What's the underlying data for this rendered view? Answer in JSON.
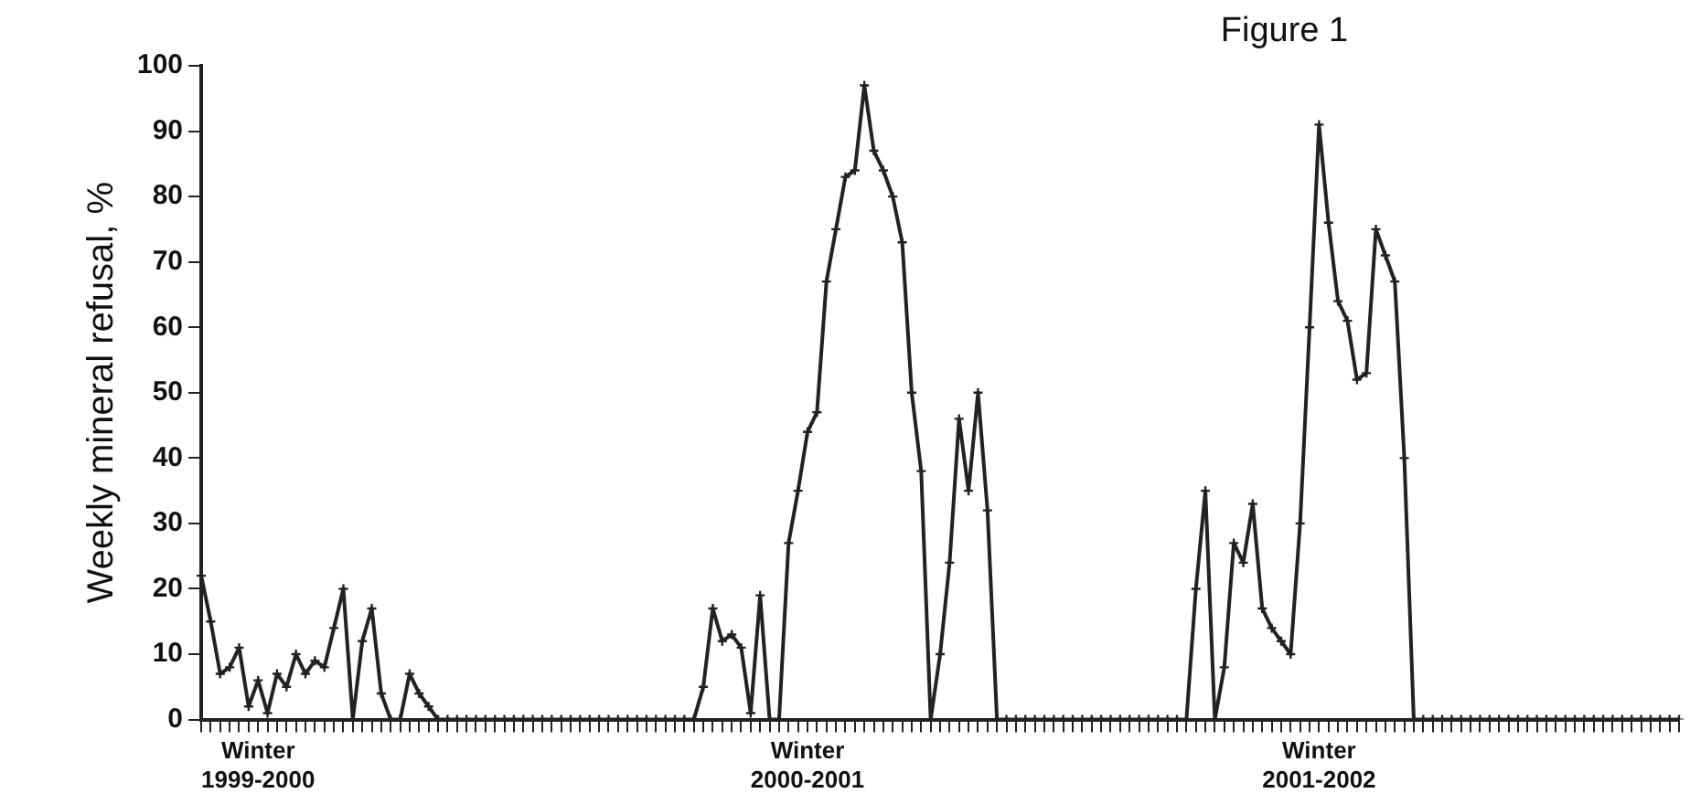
{
  "chart_data": {
    "type": "line",
    "title": "Figure 1",
    "ylabel": "Weekly mineral refusal, %",
    "categories": [
      null,
      null,
      null,
      null,
      null,
      null,
      "Winter 1999-2000",
      null,
      null,
      null,
      null,
      null,
      null,
      null,
      null,
      null,
      null,
      null,
      null,
      null,
      null,
      null,
      null,
      null,
      null,
      null,
      null,
      null,
      null,
      null,
      null,
      null,
      null,
      null,
      null,
      null,
      null,
      null,
      null,
      null,
      null,
      null,
      null,
      null,
      null,
      null,
      null,
      null,
      null,
      null,
      null,
      null,
      null,
      null,
      null,
      null,
      null,
      null,
      null,
      null,
      null,
      null,
      null,
      null,
      "Winter 2000-2001",
      null,
      null,
      null,
      null,
      null,
      null,
      null,
      null,
      null,
      null,
      null,
      null,
      null,
      null,
      null,
      null,
      null,
      null,
      null,
      null,
      null,
      null,
      null,
      null,
      null,
      null,
      null,
      null,
      null,
      null,
      null,
      null,
      null,
      null,
      null,
      null,
      null,
      null,
      null,
      null,
      null,
      null,
      null,
      null,
      null,
      null,
      null,
      null,
      null,
      null,
      null,
      null,
      null,
      "Winter 2001-2002",
      null,
      null,
      null,
      null,
      null,
      null,
      null,
      null,
      null,
      null,
      null,
      null,
      null,
      null,
      null,
      null,
      null,
      null,
      null,
      null,
      null,
      null,
      null,
      null,
      null,
      null,
      null,
      null,
      null,
      null,
      null,
      null,
      null,
      null,
      null,
      null,
      null,
      null
    ],
    "series": [
      {
        "color": "#222222",
        "values": [
          22,
          15,
          7,
          8,
          11,
          2,
          6,
          1,
          7,
          5,
          10,
          7,
          9,
          8,
          14,
          20,
          0,
          12,
          17,
          4,
          0,
          0,
          7,
          4,
          2,
          0,
          0,
          0,
          0,
          0,
          0,
          0,
          0,
          0,
          0,
          0,
          0,
          0,
          0,
          0,
          0,
          0,
          0,
          0,
          0,
          0,
          0,
          0,
          0,
          0,
          0,
          0,
          0,
          5,
          17,
          12,
          13,
          11,
          1,
          19,
          0,
          0,
          27,
          35,
          44,
          47,
          67,
          75,
          83,
          84,
          97,
          87,
          84,
          80,
          73,
          50,
          38,
          0,
          10,
          24,
          46,
          35,
          50,
          32,
          0,
          0,
          0,
          0,
          0,
          0,
          0,
          0,
          0,
          0,
          0,
          0,
          0,
          0,
          0,
          0,
          0,
          0,
          0,
          0,
          0,
          20,
          35,
          0,
          8,
          27,
          24,
          33,
          17,
          14,
          12,
          10,
          30,
          60,
          91,
          76,
          64,
          61,
          52,
          53,
          75,
          71,
          67,
          40,
          0,
          0,
          0,
          0,
          0,
          0,
          0,
          0,
          0,
          0,
          0,
          0,
          0,
          0,
          0,
          0,
          0,
          0,
          0,
          0,
          0,
          0,
          0,
          0,
          0,
          0,
          0,
          0,
          0
        ]
      }
    ],
    "ylim": [
      0,
      100
    ],
    "yticks": [
      0,
      10,
      20,
      30,
      40,
      50,
      60,
      70,
      80,
      90,
      100
    ],
    "grid": false,
    "legend": false,
    "marker": "cross",
    "line_style": "solid"
  }
}
